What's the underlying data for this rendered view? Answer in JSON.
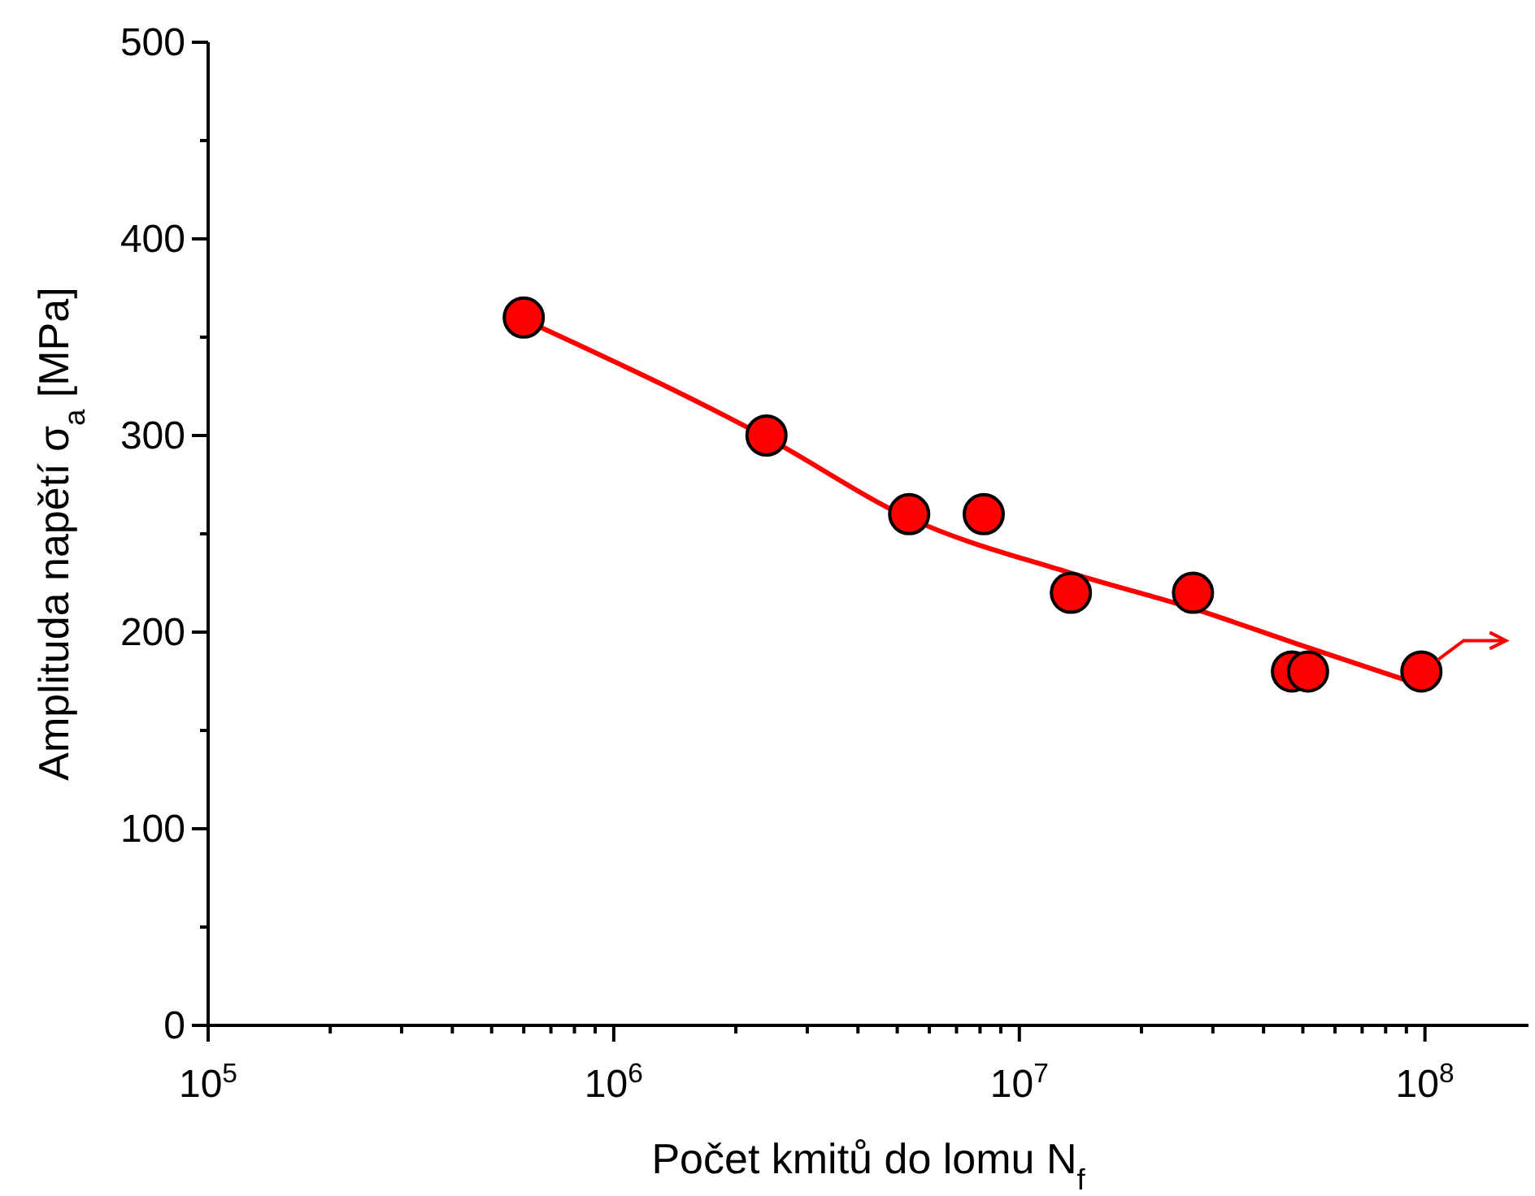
{
  "chart_data": {
    "type": "scatter",
    "xlabel": "Počet kmitů do lomu N$_{f}$",
    "ylabel": "Amplituda napětí σ$_{a}$ [MPa]",
    "log": "x",
    "xlim": [
      100000,
      180000000
    ],
    "ylim": [
      0,
      500
    ],
    "xticks": [
      {
        "value": 100000,
        "label": "10$^{5}$"
      },
      {
        "value": 200000,
        "label": null
      },
      {
        "value": 300000,
        "label": null
      },
      {
        "value": 400000,
        "label": null
      },
      {
        "value": 500000,
        "label": null
      },
      {
        "value": 600000,
        "label": null
      },
      {
        "value": 700000,
        "label": null
      },
      {
        "value": 800000,
        "label": null
      },
      {
        "value": 900000,
        "label": null
      },
      {
        "value": 1000000,
        "label": "10$^{6}$"
      },
      {
        "value": 2000000,
        "label": null
      },
      {
        "value": 3000000,
        "label": null
      },
      {
        "value": 4000000,
        "label": null
      },
      {
        "value": 5000000,
        "label": null
      },
      {
        "value": 6000000,
        "label": null
      },
      {
        "value": 7000000,
        "label": null
      },
      {
        "value": 8000000,
        "label": null
      },
      {
        "value": 9000000,
        "label": null
      },
      {
        "value": 10000000,
        "label": "10$^{7}$"
      },
      {
        "value": 20000000,
        "label": null
      },
      {
        "value": 30000000,
        "label": null
      },
      {
        "value": 40000000,
        "label": null
      },
      {
        "value": 50000000,
        "label": null
      },
      {
        "value": 60000000,
        "label": null
      },
      {
        "value": 70000000,
        "label": null
      },
      {
        "value": 80000000,
        "label": null
      },
      {
        "value": 90000000,
        "label": null
      },
      {
        "value": 100000000,
        "label": "10$^{8}$"
      }
    ],
    "yticks": [
      0,
      {
        "value": 50,
        "label": null
      },
      100,
      {
        "value": 150,
        "label": null
      },
      200,
      {
        "value": 250,
        "label": null
      },
      300,
      {
        "value": 350,
        "label": null
      },
      400,
      {
        "value": 450,
        "label": null
      },
      500
    ],
    "line_style": "solid",
    "series": [
      {
        "marker": "circle",
        "color": "#ff0000",
        "x": [
          600000,
          2380000,
          5350000,
          8170000,
          13400000,
          26800000,
          47000000,
          51500000,
          98000000
        ],
        "values": [
          360,
          300,
          260,
          260,
          220,
          220,
          180,
          180,
          180
        ]
      },
      {
        "type": "line",
        "marker": "none",
        "color": "#ff0000",
        "x": [
          600000,
          2380000,
          5350000,
          13400000,
          26800000,
          50000000,
          98000000
        ],
        "values": [
          359,
          299,
          258,
          230,
          212,
          193,
          173
        ]
      }
    ]
  }
}
